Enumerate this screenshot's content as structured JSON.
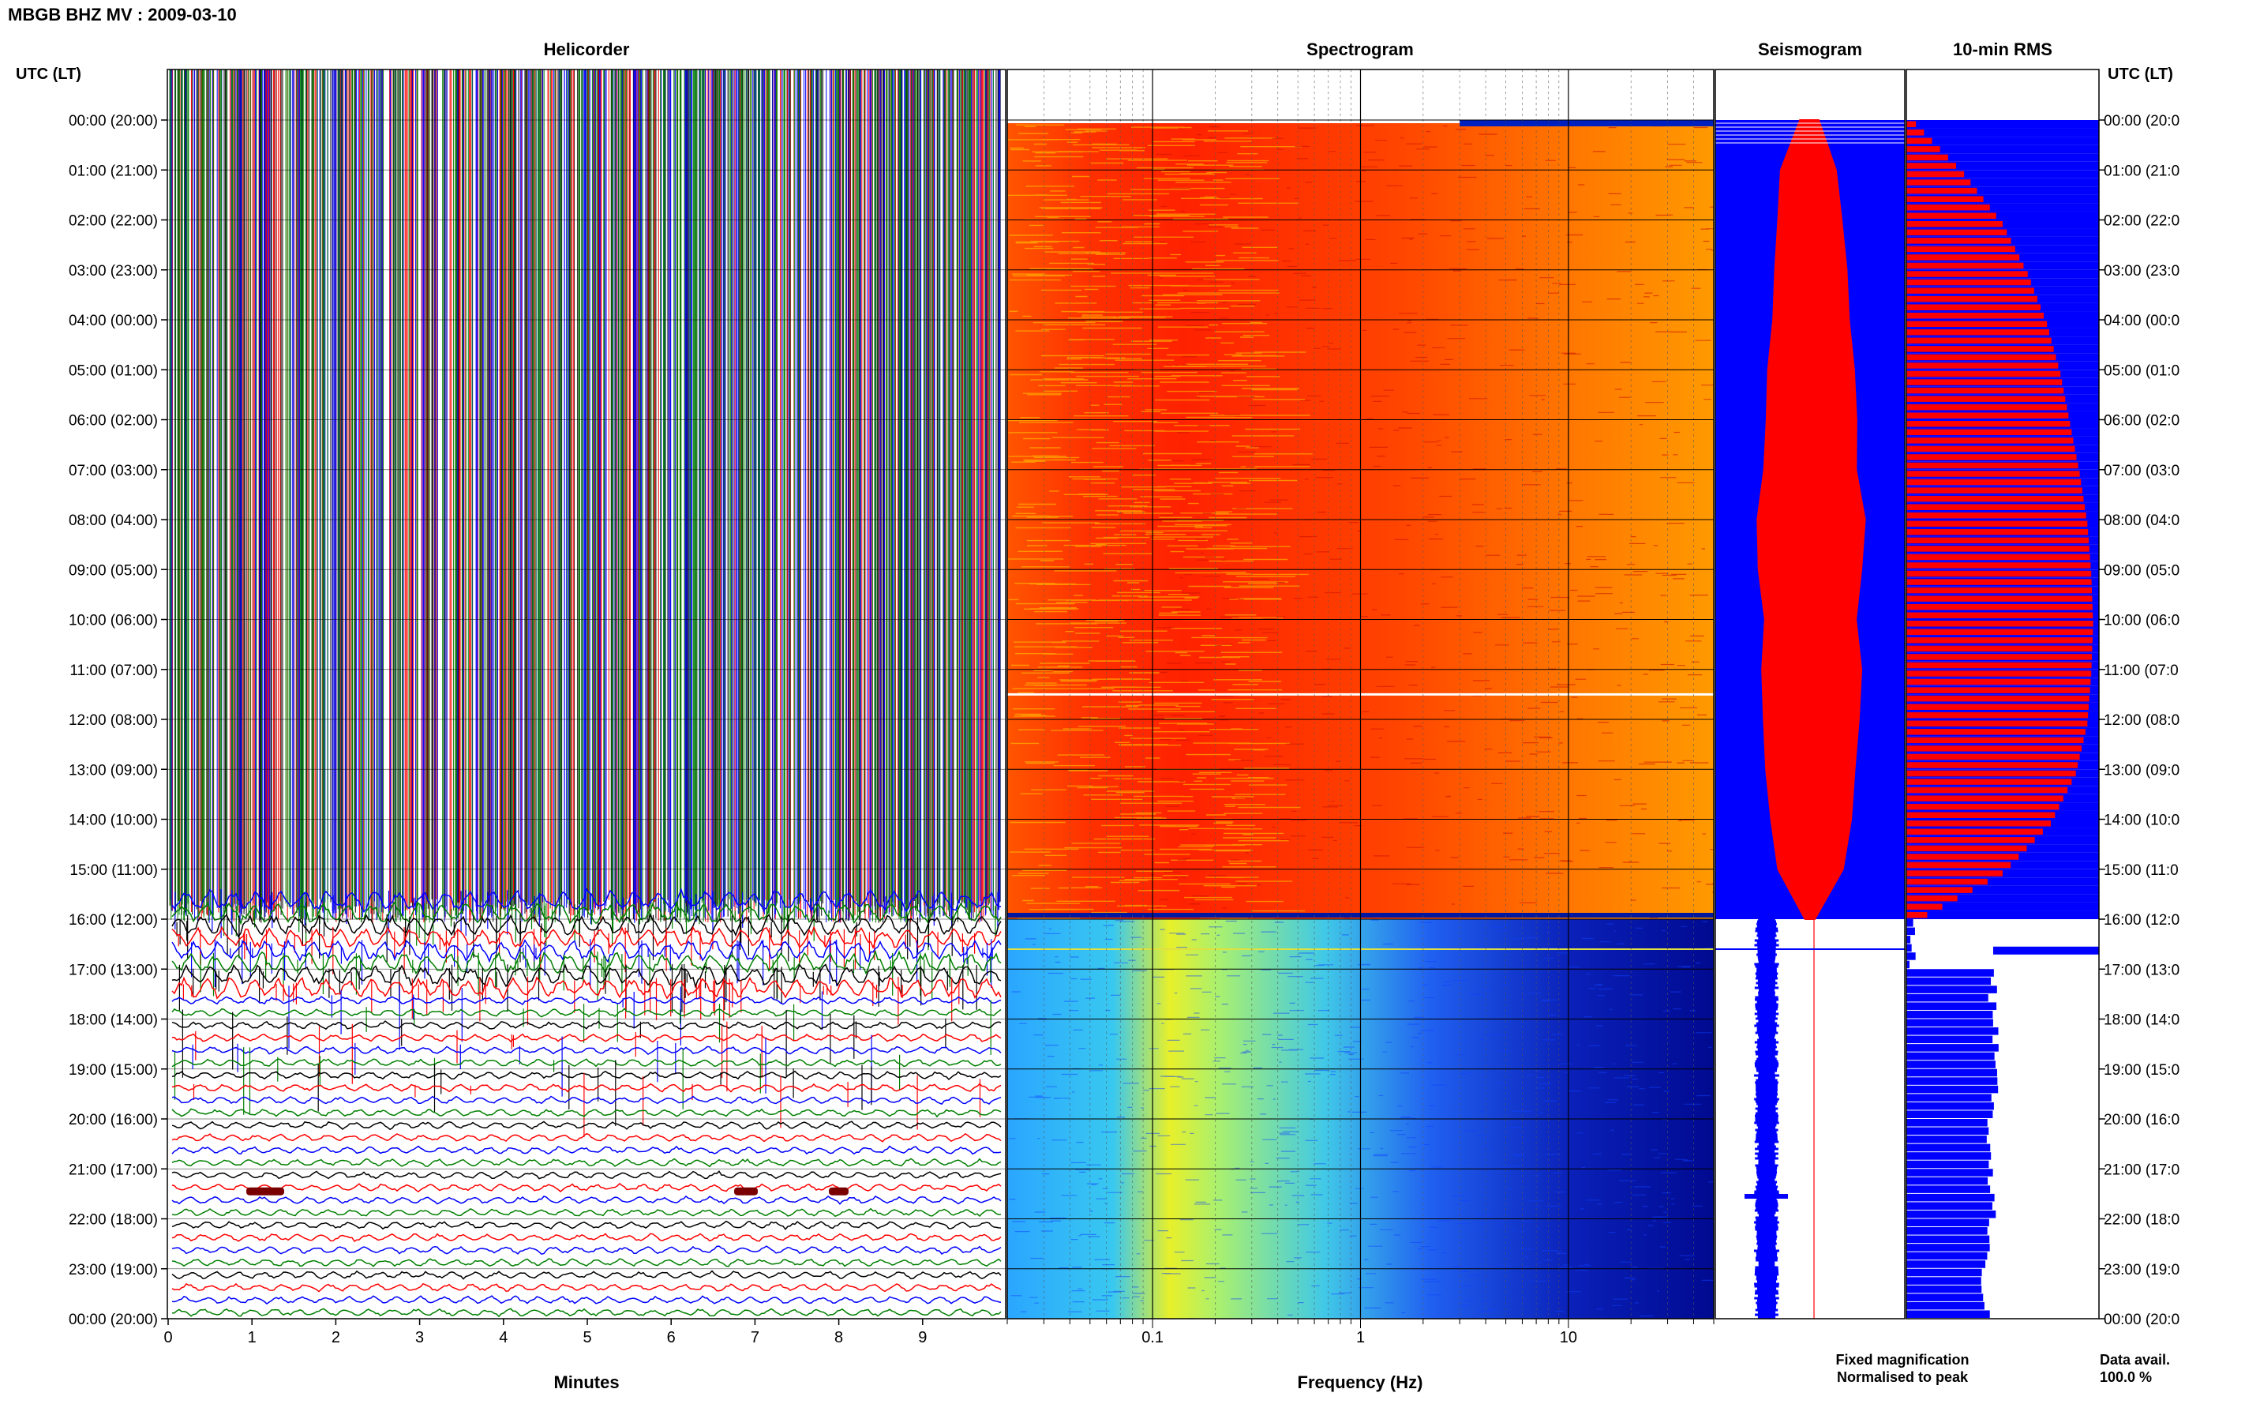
{
  "header": {
    "title": "MBGB BHZ MV : 2009-03-10",
    "utc_label": "UTC (LT)"
  },
  "panels": {
    "helicorder": "Helicorder",
    "spectrogram": "Spectrogram",
    "seismogram": "Seismogram",
    "rms": "10-min RMS"
  },
  "time_labels": [
    "00:00 (20:00)",
    "01:00 (21:00)",
    "02:00 (22:00)",
    "03:00 (23:00)",
    "04:00 (00:00)",
    "05:00 (01:00)",
    "06:00 (02:00)",
    "07:00 (03:00)",
    "08:00 (04:00)",
    "09:00 (05:00)",
    "10:00 (06:00)",
    "11:00 (07:00)",
    "12:00 (08:00)",
    "13:00 (09:00)",
    "14:00 (10:00)",
    "15:00 (11:00)",
    "16:00 (12:00)",
    "17:00 (13:00)",
    "18:00 (14:00)",
    "19:00 (15:00)",
    "20:00 (16:00)",
    "21:00 (17:00)",
    "22:00 (18:00)",
    "23:00 (19:00)",
    "00:00 (20:00)"
  ],
  "right_time_labels": [
    "00:00 (20:0",
    "01:00 (21:0",
    "02:00 (22:0",
    "03:00 (23:0",
    "04:00 (00:0",
    "05:00 (01:0",
    "06:00 (02:0",
    "07:00 (03:0",
    "08:00 (04:0",
    "09:00 (05:0",
    "10:00 (06:0",
    "11:00 (07:0",
    "12:00 (08:0",
    "13:00 (09:0",
    "14:00 (10:0",
    "15:00 (11:0",
    "16:00 (12:0",
    "17:00 (13:0",
    "18:00 (14:0",
    "19:00 (15:0",
    "20:00 (16:0",
    "21:00 (17:0",
    "22:00 (18:0",
    "23:00 (19:0",
    "00:00 (20:0"
  ],
  "legend": {
    "fixed": "Fixed magnification",
    "normalised": "Normalised to peak",
    "fixed_color": "#0000ff",
    "normalised_color": "#ff0000",
    "avail_label": "Data avail.",
    "avail_value": "100.0 %"
  },
  "chart_data": [
    {
      "type": "line",
      "panel": "Helicorder",
      "xlabel": "Minutes",
      "xlim": [
        0,
        10
      ],
      "xticks": [
        "0",
        "1",
        "2",
        "3",
        "4",
        "5",
        "6",
        "7",
        "8",
        "9"
      ],
      "ylim": [
        "00:00",
        "24:00"
      ],
      "trace_colors": [
        "#000000",
        "#ff0000",
        "#0000ff",
        "#008000"
      ],
      "saturated_until_hour": 15.6,
      "heavy_until_hour": 17.4
    },
    {
      "type": "heatmap",
      "panel": "Spectrogram",
      "xlabel": "Frequency (Hz)",
      "xscale": "log",
      "xlim": [
        0.02,
        50
      ],
      "xticks": [
        "0.1",
        "1",
        "10"
      ],
      "ylim": [
        "00:00",
        "24:00"
      ],
      "regimes": [
        {
          "from_hour": 0,
          "to_hour": 16,
          "description": "high energy, red/orange"
        },
        {
          "from_hour": 16,
          "to_hour": 24,
          "description": "low energy, blue/cyan"
        }
      ],
      "gap_hour": 11.5,
      "noise_marker_hour": 16.6
    },
    {
      "type": "area",
      "panel": "Seismogram",
      "series": [
        {
          "name": "Fixed magnification",
          "color": "#0000ff"
        },
        {
          "name": "Normalised to peak",
          "color": "#ff0000"
        }
      ],
      "normalised_hours": [
        0,
        1,
        2,
        3,
        4,
        5,
        6,
        7,
        8,
        9,
        10,
        11,
        12,
        13,
        14,
        15,
        16
      ],
      "normalised_halfwidth": [
        0.1,
        0.3,
        0.35,
        0.4,
        0.42,
        0.45,
        0.48,
        0.5,
        0.6,
        0.55,
        0.5,
        0.55,
        0.52,
        0.5,
        0.45,
        0.35,
        0.05
      ],
      "fixed_until_hour": 16
    },
    {
      "type": "bar",
      "panel": "10-min RMS",
      "orientation": "horizontal",
      "ylim": [
        "00:00",
        "24:00"
      ],
      "hours": [
        0,
        1,
        2,
        3,
        4,
        5,
        6,
        7,
        8,
        9,
        10,
        11,
        12,
        13,
        14,
        15,
        16,
        17,
        18,
        19,
        20,
        21,
        22,
        23
      ],
      "rms": [
        0.05,
        0.3,
        0.5,
        0.63,
        0.73,
        0.8,
        0.85,
        0.9,
        0.94,
        0.96,
        0.97,
        0.96,
        0.94,
        0.88,
        0.75,
        0.5,
        0.03,
        0.45,
        0.47,
        0.46,
        0.43,
        0.44,
        0.42,
        0.41
      ],
      "after_16h_color": "#0000ff",
      "before_16h_color": "#ff0000"
    }
  ]
}
